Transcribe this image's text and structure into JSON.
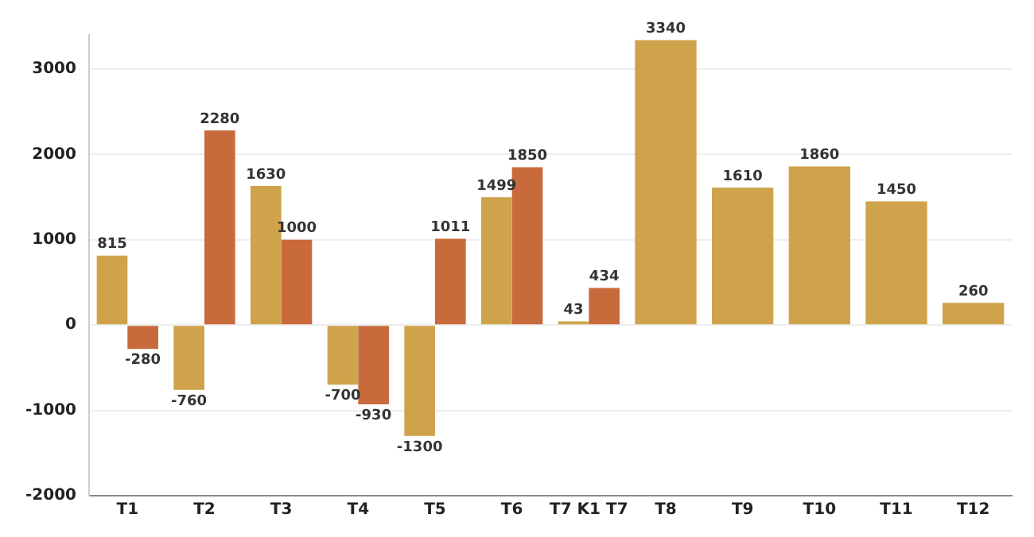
{
  "chart_data": {
    "type": "bar",
    "categories": [
      "T1",
      "T2",
      "T3",
      "T4",
      "T5",
      "T6",
      "T7 K1 T7",
      "T8",
      "T9",
      "T10",
      "T11",
      "T12"
    ],
    "series": [
      {
        "color": "#cfa34b",
        "values": [
          815,
          -760,
          1630,
          -700,
          -1300,
          1499,
          43,
          3340,
          1610,
          1860,
          1450,
          260
        ]
      },
      {
        "color": "#c96a3c",
        "values": [
          -280,
          2280,
          1000,
          -930,
          1011,
          1850,
          434,
          null,
          null,
          null,
          null,
          null
        ]
      }
    ],
    "ylim": [
      -2000,
      3400
    ],
    "yticks": [
      -2000,
      -1000,
      0,
      1000,
      2000,
      3000
    ],
    "grid": "y",
    "legend": false,
    "data_labels": true
  }
}
